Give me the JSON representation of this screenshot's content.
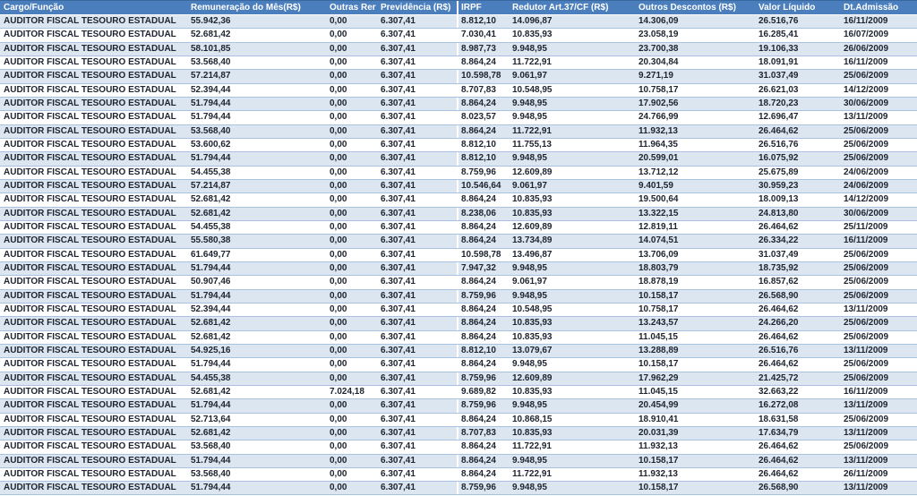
{
  "colors": {
    "header_bg": "#4a7ebd",
    "header_border_top": "#39689f",
    "header_text": "#ffffff",
    "stripe_bg": "#dce6f1",
    "row_bg": "#ffffff",
    "row_border": "#a8c2e0",
    "cell_text": "#1d2430",
    "separator": "#ffffff"
  },
  "table": {
    "columns": [
      {
        "key": "cargo",
        "label": "Cargo/Função"
      },
      {
        "key": "remuneracao",
        "label": "Remuneração do Mês(R$)"
      },
      {
        "key": "outras",
        "label": "Outras Rer"
      },
      {
        "key": "previdencia",
        "label": "Previdência (R$)"
      },
      {
        "key": "irpf",
        "label": "IRPF"
      },
      {
        "key": "redutor",
        "label": "Redutor Art.37/CF (R$)"
      },
      {
        "key": "descontos",
        "label": "Outros Descontos (R$)"
      },
      {
        "key": "liquido",
        "label": "Valor Líquido"
      },
      {
        "key": "admissao",
        "label": "Dt.Admissão"
      }
    ],
    "rows": [
      [
        "AUDITOR FISCAL TESOURO ESTADUAL",
        "55.942,36",
        "0,00",
        "6.307,41",
        "8.812,10",
        "14.096,87",
        "14.306,09",
        "26.516,76",
        "16/11/2009"
      ],
      [
        "AUDITOR FISCAL TESOURO ESTADUAL",
        "52.681,42",
        "0,00",
        "6.307,41",
        "7.030,41",
        "10.835,93",
        "23.058,19",
        "16.285,41",
        "16/07/2009"
      ],
      [
        "AUDITOR FISCAL TESOURO ESTADUAL",
        "58.101,85",
        "0,00",
        "6.307,41",
        "8.987,73",
        "9.948,95",
        "23.700,38",
        "19.106,33",
        "26/06/2009"
      ],
      [
        "AUDITOR FISCAL TESOURO ESTADUAL",
        "53.568,40",
        "0,00",
        "6.307,41",
        "8.864,24",
        "11.722,91",
        "20.304,84",
        "18.091,91",
        "16/11/2009"
      ],
      [
        "AUDITOR FISCAL TESOURO ESTADUAL",
        "57.214,87",
        "0,00",
        "6.307,41",
        "10.598,78",
        "9.061,97",
        "9.271,19",
        "31.037,49",
        "25/06/2009"
      ],
      [
        "AUDITOR FISCAL TESOURO ESTADUAL",
        "52.394,44",
        "0,00",
        "6.307,41",
        "8.707,83",
        "10.548,95",
        "10.758,17",
        "26.621,03",
        "14/12/2009"
      ],
      [
        "AUDITOR FISCAL TESOURO ESTADUAL",
        "51.794,44",
        "0,00",
        "6.307,41",
        "8.864,24",
        "9.948,95",
        "17.902,56",
        "18.720,23",
        "30/06/2009"
      ],
      [
        "AUDITOR FISCAL TESOURO ESTADUAL",
        "51.794,44",
        "0,00",
        "6.307,41",
        "8.023,57",
        "9.948,95",
        "24.766,99",
        "12.696,47",
        "13/11/2009"
      ],
      [
        "AUDITOR FISCAL TESOURO ESTADUAL",
        "53.568,40",
        "0,00",
        "6.307,41",
        "8.864,24",
        "11.722,91",
        "11.932,13",
        "26.464,62",
        "25/06/2009"
      ],
      [
        "AUDITOR FISCAL TESOURO ESTADUAL",
        "53.600,62",
        "0,00",
        "6.307,41",
        "8.812,10",
        "11.755,13",
        "11.964,35",
        "26.516,76",
        "25/06/2009"
      ],
      [
        "AUDITOR FISCAL TESOURO ESTADUAL",
        "51.794,44",
        "0,00",
        "6.307,41",
        "8.812,10",
        "9.948,95",
        "20.599,01",
        "16.075,92",
        "25/06/2009"
      ],
      [
        "AUDITOR FISCAL TESOURO ESTADUAL",
        "54.455,38",
        "0,00",
        "6.307,41",
        "8.759,96",
        "12.609,89",
        "13.712,12",
        "25.675,89",
        "24/06/2009"
      ],
      [
        "AUDITOR FISCAL TESOURO ESTADUAL",
        "57.214,87",
        "0,00",
        "6.307,41",
        "10.546,64",
        "9.061,97",
        "9.401,59",
        "30.959,23",
        "24/06/2009"
      ],
      [
        "AUDITOR FISCAL TESOURO ESTADUAL",
        "52.681,42",
        "0,00",
        "6.307,41",
        "8.864,24",
        "10.835,93",
        "19.500,64",
        "18.009,13",
        "14/12/2009"
      ],
      [
        "AUDITOR FISCAL TESOURO ESTADUAL",
        "52.681,42",
        "0,00",
        "6.307,41",
        "8.238,06",
        "10.835,93",
        "13.322,15",
        "24.813,80",
        "30/06/2009"
      ],
      [
        "AUDITOR FISCAL TESOURO ESTADUAL",
        "54.455,38",
        "0,00",
        "6.307,41",
        "8.864,24",
        "12.609,89",
        "12.819,11",
        "26.464,62",
        "25/11/2009"
      ],
      [
        "AUDITOR FISCAL TESOURO ESTADUAL",
        "55.580,38",
        "0,00",
        "6.307,41",
        "8.864,24",
        "13.734,89",
        "14.074,51",
        "26.334,22",
        "16/11/2009"
      ],
      [
        "AUDITOR FISCAL TESOURO ESTADUAL",
        "61.649,77",
        "0,00",
        "6.307,41",
        "10.598,78",
        "13.496,87",
        "13.706,09",
        "31.037,49",
        "25/06/2009"
      ],
      [
        "AUDITOR FISCAL TESOURO ESTADUAL",
        "51.794,44",
        "0,00",
        "6.307,41",
        "7.947,32",
        "9.948,95",
        "18.803,79",
        "18.735,92",
        "25/06/2009"
      ],
      [
        "AUDITOR FISCAL TESOURO ESTADUAL",
        "50.907,46",
        "0,00",
        "6.307,41",
        "8.864,24",
        "9.061,97",
        "18.878,19",
        "16.857,62",
        "25/06/2009"
      ],
      [
        "AUDITOR FISCAL TESOURO ESTADUAL",
        "51.794,44",
        "0,00",
        "6.307,41",
        "8.759,96",
        "9.948,95",
        "10.158,17",
        "26.568,90",
        "25/06/2009"
      ],
      [
        "AUDITOR FISCAL TESOURO ESTADUAL",
        "52.394,44",
        "0,00",
        "6.307,41",
        "8.864,24",
        "10.548,95",
        "10.758,17",
        "26.464,62",
        "13/11/2009"
      ],
      [
        "AUDITOR FISCAL TESOURO ESTADUAL",
        "52.681,42",
        "0,00",
        "6.307,41",
        "8.864,24",
        "10.835,93",
        "13.243,57",
        "24.266,20",
        "25/06/2009"
      ],
      [
        "AUDITOR FISCAL TESOURO ESTADUAL",
        "52.681,42",
        "0,00",
        "6.307,41",
        "8.864,24",
        "10.835,93",
        "11.045,15",
        "26.464,62",
        "25/06/2009"
      ],
      [
        "AUDITOR FISCAL TESOURO ESTADUAL",
        "54.925,16",
        "0,00",
        "6.307,41",
        "8.812,10",
        "13.079,67",
        "13.288,89",
        "26.516,76",
        "13/11/2009"
      ],
      [
        "AUDITOR FISCAL TESOURO ESTADUAL",
        "51.794,44",
        "0,00",
        "6.307,41",
        "8.864,24",
        "9.948,95",
        "10.158,17",
        "26.464,62",
        "25/06/2009"
      ],
      [
        "AUDITOR FISCAL TESOURO ESTADUAL",
        "54.455,38",
        "0,00",
        "6.307,41",
        "8.759,96",
        "12.609,89",
        "17.962,29",
        "21.425,72",
        "25/06/2009"
      ],
      [
        "AUDITOR FISCAL TESOURO ESTADUAL",
        "52.681,42",
        "7.024,18",
        "6.307,41",
        "9.689,82",
        "10.835,93",
        "11.045,15",
        "32.663,22",
        "16/11/2009"
      ],
      [
        "AUDITOR FISCAL TESOURO ESTADUAL",
        "51.794,44",
        "0,00",
        "6.307,41",
        "8.759,96",
        "9.948,95",
        "20.454,99",
        "16.272,08",
        "13/11/2009"
      ],
      [
        "AUDITOR FISCAL TESOURO ESTADUAL",
        "52.713,64",
        "0,00",
        "6.307,41",
        "8.864,24",
        "10.868,15",
        "18.910,41",
        "18.631,58",
        "25/06/2009"
      ],
      [
        "AUDITOR FISCAL TESOURO ESTADUAL",
        "52.681,42",
        "0,00",
        "6.307,41",
        "8.707,83",
        "10.835,93",
        "20.031,39",
        "17.634,79",
        "13/11/2009"
      ],
      [
        "AUDITOR FISCAL TESOURO ESTADUAL",
        "53.568,40",
        "0,00",
        "6.307,41",
        "8.864,24",
        "11.722,91",
        "11.932,13",
        "26.464,62",
        "25/06/2009"
      ],
      [
        "AUDITOR FISCAL TESOURO ESTADUAL",
        "51.794,44",
        "0,00",
        "6.307,41",
        "8.864,24",
        "9.948,95",
        "10.158,17",
        "26.464,62",
        "13/11/2009"
      ],
      [
        "AUDITOR FISCAL TESOURO ESTADUAL",
        "53.568,40",
        "0,00",
        "6.307,41",
        "8.864,24",
        "11.722,91",
        "11.932,13",
        "26.464,62",
        "26/11/2009"
      ],
      [
        "AUDITOR FISCAL TESOURO ESTADUAL",
        "51.794,44",
        "0,00",
        "6.307,41",
        "8.759,96",
        "9.948,95",
        "10.158,17",
        "26.568,90",
        "13/11/2009"
      ]
    ]
  }
}
